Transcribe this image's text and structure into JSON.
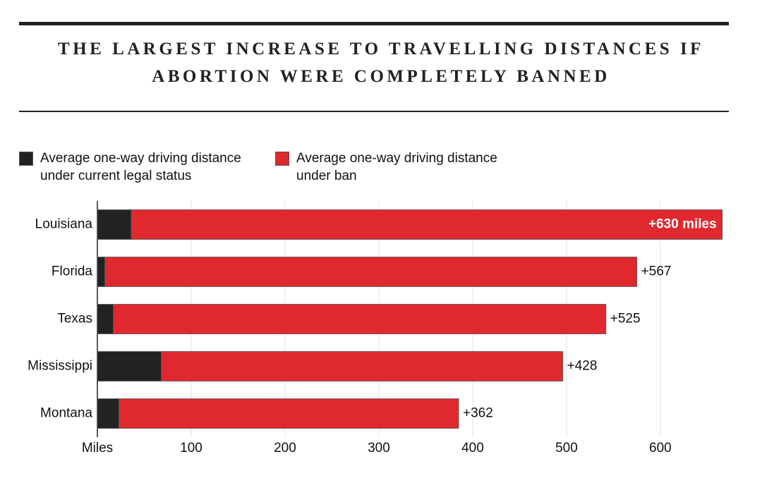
{
  "chart_data": {
    "type": "stacked-bar-horizontal",
    "title": "THE LARGEST INCREASE TO TRAVELLING DISTANCES IF ABORTION WERE COMPLETELY BANNED",
    "categories": [
      "Louisiana",
      "Florida",
      "Texas",
      "Mississippi",
      "Montana"
    ],
    "series": [
      {
        "name": "Average one-way driving distance under current legal status",
        "color": "#222222",
        "values": [
          36,
          8,
          17,
          68,
          23
        ]
      },
      {
        "name": "Average one-way driving distance under ban",
        "color": "#e0282f",
        "values": [
          630,
          567,
          525,
          428,
          362
        ],
        "value_labels": [
          "+630 miles",
          "+567",
          "+525",
          "+428",
          "+362"
        ]
      }
    ],
    "xlim": [
      0,
      670
    ],
    "xticks": [
      {
        "value": 0,
        "label": "Miles"
      },
      100,
      200,
      300,
      400,
      500,
      600
    ],
    "grid": true
  }
}
